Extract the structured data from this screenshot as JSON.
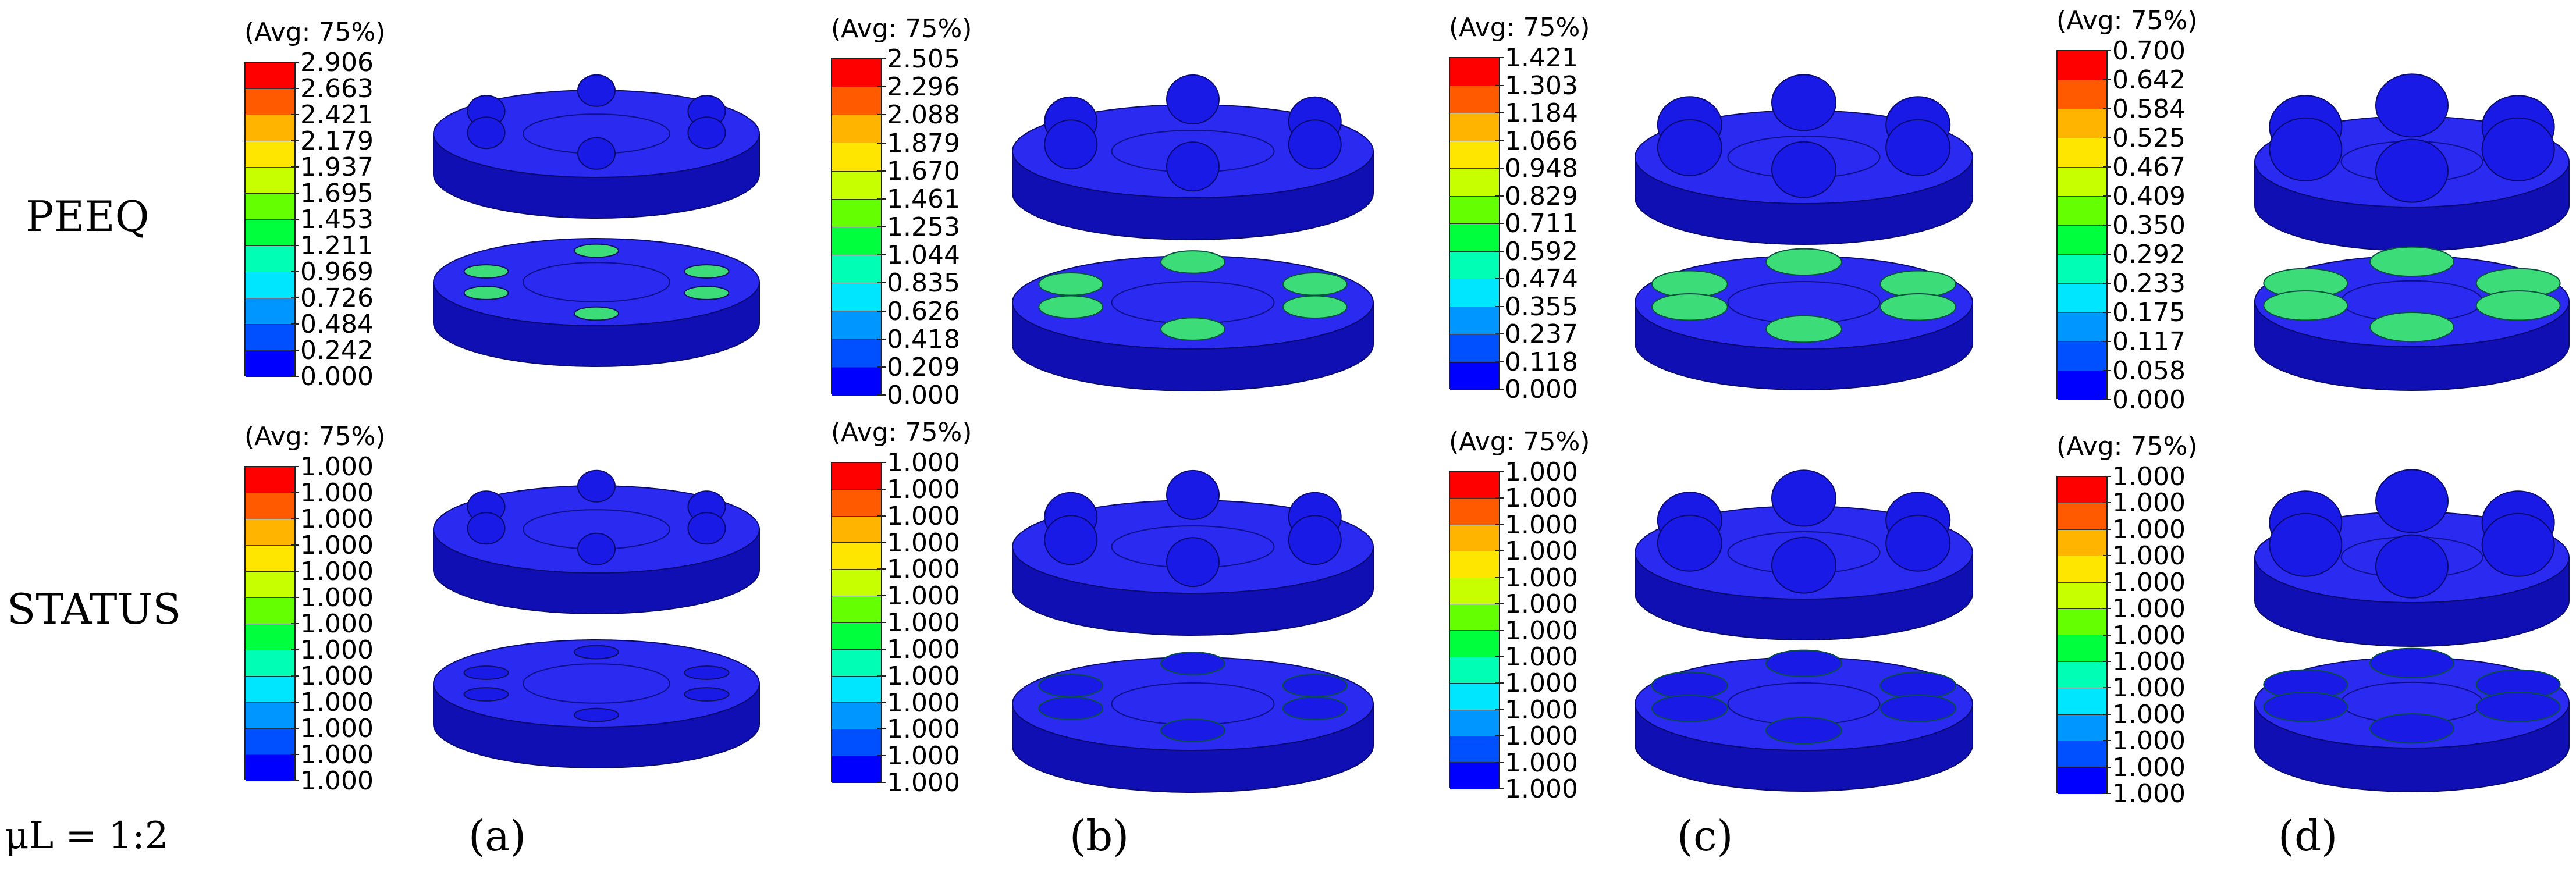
{
  "rows": {
    "peeq": "PEEQ",
    "status": "STATUS"
  },
  "mu_ratio": "μL = 1:2",
  "panels": [
    {
      "label": "(a)",
      "peeq": {
        "title": "(Avg: 75%)",
        "ticks": [
          "2.906",
          "2.663",
          "2.421",
          "2.179",
          "1.937",
          "1.695",
          "1.453",
          "1.211",
          "0.969",
          "0.726",
          "0.484",
          "0.242",
          "0.000"
        ]
      },
      "status": {
        "title": "(Avg: 75%)",
        "ticks": [
          "1.000",
          "1.000",
          "1.000",
          "1.000",
          "1.000",
          "1.000",
          "1.000",
          "1.000",
          "1.000",
          "1.000",
          "1.000",
          "1.000",
          "1.000"
        ]
      }
    },
    {
      "label": "(b)",
      "peeq": {
        "title": "(Avg: 75%)",
        "ticks": [
          "2.505",
          "2.296",
          "2.088",
          "1.879",
          "1.670",
          "1.461",
          "1.253",
          "1.044",
          "0.835",
          "0.626",
          "0.418",
          "0.209",
          "0.000"
        ]
      },
      "status": {
        "title": "(Avg: 75%)",
        "ticks": [
          "1.000",
          "1.000",
          "1.000",
          "1.000",
          "1.000",
          "1.000",
          "1.000",
          "1.000",
          "1.000",
          "1.000",
          "1.000",
          "1.000",
          "1.000"
        ]
      }
    },
    {
      "label": "(c)",
      "peeq": {
        "title": "(Avg: 75%)",
        "ticks": [
          "1.421",
          "1.303",
          "1.184",
          "1.066",
          "0.948",
          "0.829",
          "0.711",
          "0.592",
          "0.474",
          "0.355",
          "0.237",
          "0.118",
          "0.000"
        ]
      },
      "status": {
        "title": "(Avg: 75%)",
        "ticks": [
          "1.000",
          "1.000",
          "1.000",
          "1.000",
          "1.000",
          "1.000",
          "1.000",
          "1.000",
          "1.000",
          "1.000",
          "1.000",
          "1.000",
          "1.000"
        ]
      }
    },
    {
      "label": "(d)",
      "peeq": {
        "title": "(Avg: 75%)",
        "ticks": [
          "0.700",
          "0.642",
          "0.584",
          "0.525",
          "0.467",
          "0.409",
          "0.350",
          "0.292",
          "0.233",
          "0.175",
          "0.117",
          "0.058",
          "0.000"
        ]
      },
      "status": {
        "title": "(Avg: 75%)",
        "ticks": [
          "1.000",
          "1.000",
          "1.000",
          "1.000",
          "1.000",
          "1.000",
          "1.000",
          "1.000",
          "1.000",
          "1.000",
          "1.000",
          "1.000",
          "1.000"
        ]
      }
    }
  ],
  "colormap": [
    "#ff0000",
    "#ff5a00",
    "#ffb400",
    "#ffe600",
    "#c8ff00",
    "#64ff00",
    "#00ff3c",
    "#00ffb4",
    "#00e6ff",
    "#0096ff",
    "#0050ff",
    "#0000ff"
  ],
  "colors": {
    "model_blue": "#1a1ae6",
    "model_side": "#0f0fb4",
    "model_top": "#2a2af0",
    "contact_green": "#3cdc78"
  }
}
